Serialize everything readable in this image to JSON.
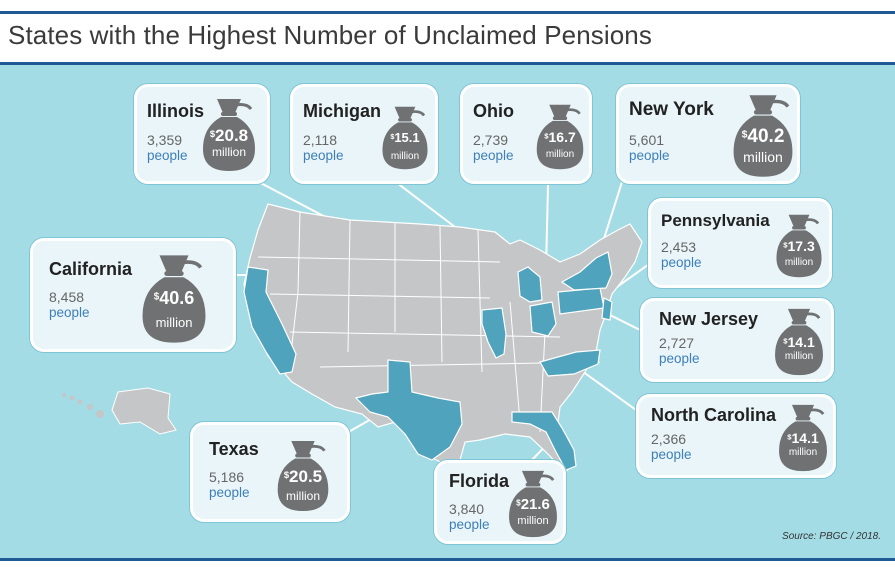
{
  "title": "States with the Highest Number of Unclaimed Pensions",
  "source": "Source:  PBGC / 2018.",
  "colors": {
    "highlight": "#4fa3bd",
    "land": "#c4c6c8",
    "ocean": "#a4dce6",
    "bag": "#707172",
    "rule": "#1f5a96"
  },
  "chart_data": {
    "type": "map",
    "title": "States with the Highest Number of Unclaimed Pensions",
    "states": [
      {
        "name": "Illinois",
        "people": "3,359",
        "people_label": "people",
        "amount": "20.8",
        "currency": "$",
        "unit": "million"
      },
      {
        "name": "Michigan",
        "people": "2,118",
        "people_label": "people",
        "amount": "15.1",
        "currency": "$",
        "unit": "million"
      },
      {
        "name": "Ohio",
        "people": "2,739",
        "people_label": "people",
        "amount": "16.7",
        "currency": "$",
        "unit": "million"
      },
      {
        "name": "New York",
        "people": "5,601",
        "people_label": "people",
        "amount": "40.2",
        "currency": "$",
        "unit": "million"
      },
      {
        "name": "Pennsylvania",
        "people": "2,453",
        "people_label": "people",
        "amount": "17.3",
        "currency": "$",
        "unit": "million"
      },
      {
        "name": "New Jersey",
        "people": "2,727",
        "people_label": "people",
        "amount": "14.1",
        "currency": "$",
        "unit": "million"
      },
      {
        "name": "North Carolina",
        "people": "2,366",
        "people_label": "people",
        "amount": "14.1",
        "currency": "$",
        "unit": "million"
      },
      {
        "name": "Florida",
        "people": "3,840",
        "people_label": "people",
        "amount": "21.6",
        "currency": "$",
        "unit": "million"
      },
      {
        "name": "Texas",
        "people": "5,186",
        "people_label": "people",
        "amount": "20.5",
        "currency": "$",
        "unit": "million"
      },
      {
        "name": "California",
        "people": "8,458",
        "people_label": "people",
        "amount": "40.6",
        "currency": "$",
        "unit": "million"
      }
    ]
  }
}
